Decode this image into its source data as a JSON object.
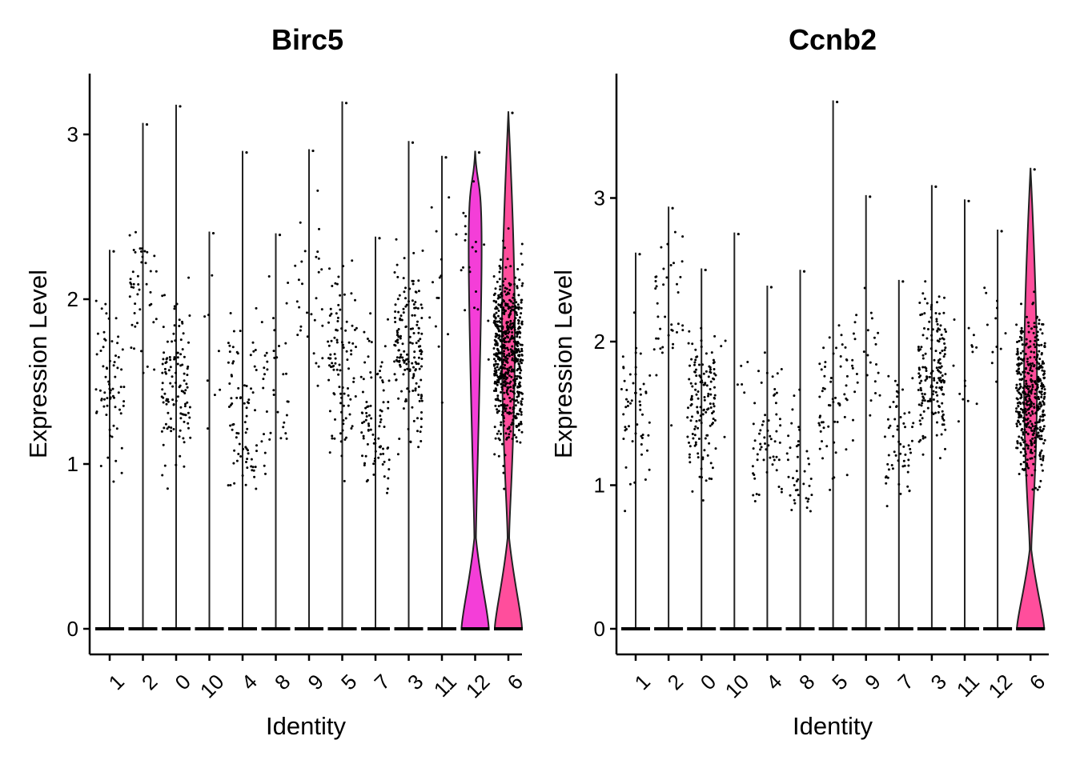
{
  "chart_data": [
    {
      "type": "violin",
      "title": "Birc5",
      "xlabel": "Identity",
      "ylabel": "Expression Level",
      "ylim": [
        -0.15,
        3.35
      ],
      "yticks": [
        0,
        1,
        2,
        3
      ],
      "categories": [
        "1",
        "2",
        "0",
        "10",
        "4",
        "8",
        "9",
        "5",
        "7",
        "3",
        "11",
        "12",
        "6"
      ],
      "max_values": [
        2.3,
        3.07,
        3.18,
        2.41,
        2.9,
        2.4,
        2.91,
        3.2,
        2.38,
        2.96,
        2.87,
        2.9,
        3.14
      ],
      "nonzero_center": [
        1.5,
        2.05,
        1.45,
        1.8,
        1.35,
        1.45,
        1.95,
        1.6,
        1.3,
        1.7,
        2.1,
        2.2,
        1.65
      ],
      "point_counts": [
        70,
        45,
        120,
        8,
        80,
        40,
        30,
        100,
        90,
        170,
        15,
        20,
        600
      ],
      "violin_fill": [
        null,
        null,
        null,
        null,
        null,
        null,
        null,
        null,
        null,
        null,
        null,
        "#F43ED8",
        "#FF4E9C"
      ],
      "grid": false,
      "legend": "none"
    },
    {
      "type": "violin",
      "title": "Ccnb2",
      "xlabel": "Identity",
      "ylabel": "Expression Level",
      "ylim": [
        -0.18,
        3.85
      ],
      "yticks": [
        0,
        1,
        2,
        3
      ],
      "categories": [
        "1",
        "2",
        "0",
        "10",
        "4",
        "8",
        "5",
        "9",
        "7",
        "3",
        "11",
        "12",
        "6"
      ],
      "max_values": [
        2.62,
        2.94,
        2.51,
        2.76,
        2.39,
        2.5,
        3.68,
        3.02,
        2.43,
        3.09,
        2.99,
        2.78,
        3.21
      ],
      "nonzero_center": [
        1.5,
        2.2,
        1.55,
        1.8,
        1.35,
        1.15,
        1.55,
        1.9,
        1.25,
        1.75,
        1.7,
        1.9,
        1.6
      ],
      "point_counts": [
        55,
        40,
        140,
        8,
        60,
        40,
        60,
        30,
        60,
        170,
        15,
        12,
        450
      ],
      "violin_fill": [
        null,
        null,
        null,
        null,
        null,
        null,
        null,
        null,
        null,
        null,
        null,
        null,
        "#FF4E9C"
      ],
      "grid": false,
      "legend": "none"
    }
  ]
}
